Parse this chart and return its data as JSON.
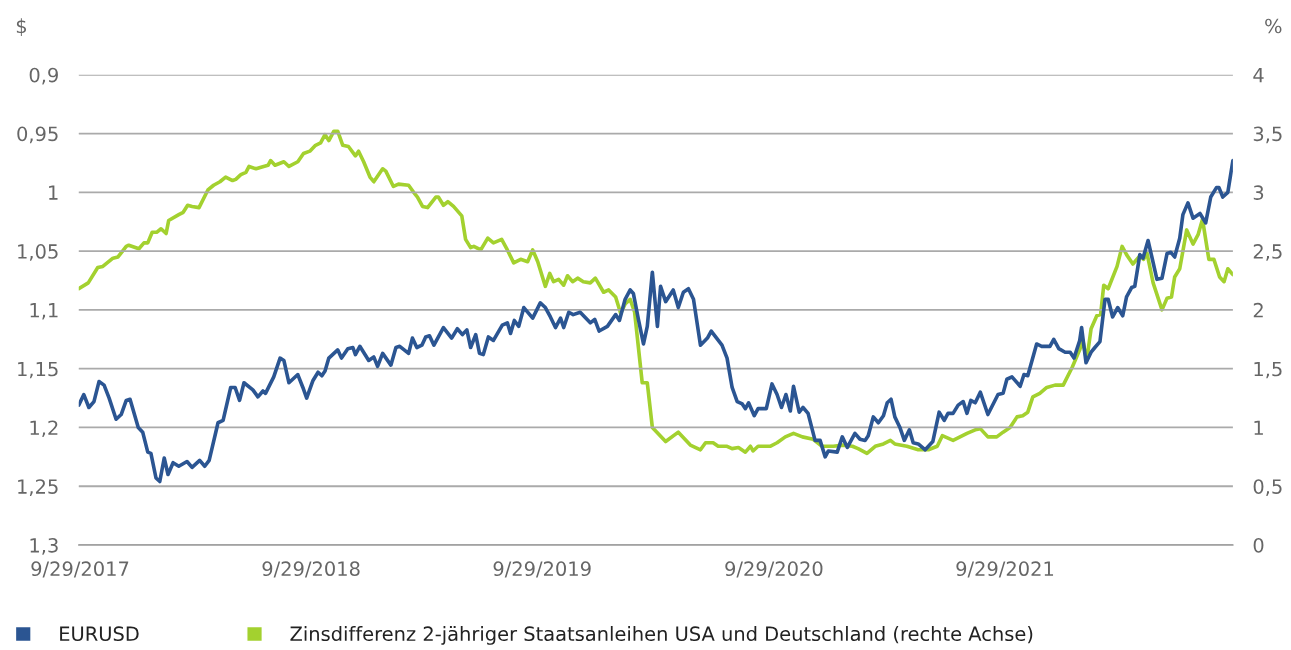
{
  "chart_data": {
    "type": "line",
    "ylabel": "$",
    "y2label": "%",
    "xlim": [
      "2017-09-27",
      "2022-09-24"
    ],
    "xticks": [
      {
        "value": "2017-09-29",
        "label": "9/29/2017"
      },
      {
        "value": "2018-09-29",
        "label": "9/29/2018"
      },
      {
        "value": "2019-09-29",
        "label": "9/29/2019"
      },
      {
        "value": "2020-09-29",
        "label": "9/29/2020"
      },
      {
        "value": "2021-09-29",
        "label": "9/29/2021"
      }
    ],
    "ylim": [
      1.3,
      0.9
    ],
    "yticks": [
      {
        "value": 0.9,
        "label": "0,9"
      },
      {
        "value": 0.95,
        "label": "0,95"
      },
      {
        "value": 1,
        "label": "1"
      },
      {
        "value": 1.05,
        "label": "1,05"
      },
      {
        "value": 1.1,
        "label": "1,1"
      },
      {
        "value": 1.15,
        "label": "1,15"
      },
      {
        "value": 1.2,
        "label": "1,2"
      },
      {
        "value": 1.25,
        "label": "1,25"
      },
      {
        "value": 1.3,
        "label": "1,3"
      }
    ],
    "y2lim": [
      0,
      4
    ],
    "y2ticks": [
      0,
      {
        "value": 0.5,
        "label": "0,5"
      },
      1,
      {
        "value": 1.5,
        "label": "1,5"
      },
      2,
      {
        "value": 2.5,
        "label": "2,5"
      },
      3,
      {
        "value": 3.5,
        "label": "3,5"
      },
      4
    ],
    "grid": "y",
    "legend": "bottom",
    "marker": "none",
    "line_style": "solid",
    "series": [
      {
        "name": "EURUSD",
        "color": "#2b5592",
        "x": [
          "2017-09-27",
          "2017-10-05",
          "2017-10-13",
          "2017-10-21",
          "2017-10-29",
          "2017-11-06",
          "2017-11-14",
          "2017-11-25",
          "2017-12-03",
          "2017-12-11",
          "2017-12-17",
          "2017-12-30",
          "2018-01-06",
          "2018-01-14",
          "2018-01-19",
          "2018-01-27",
          "2018-02-02",
          "2018-02-09",
          "2018-02-15",
          "2018-02-23",
          "2018-03-04",
          "2018-03-17",
          "2018-03-25",
          "2018-04-06",
          "2018-04-14",
          "2018-04-21",
          "2018-05-05",
          "2018-05-13",
          "2018-05-25",
          "2018-06-01",
          "2018-06-08",
          "2018-06-15",
          "2018-06-29",
          "2018-07-07",
          "2018-07-15",
          "2018-07-19",
          "2018-08-01",
          "2018-08-11",
          "2018-08-17",
          "2018-08-25",
          "2018-09-08",
          "2018-09-16",
          "2018-09-22",
          "2018-10-02",
          "2018-10-10",
          "2018-10-16",
          "2018-10-21",
          "2018-10-27",
          "2018-11-10",
          "2018-11-16",
          "2018-11-26",
          "2018-12-04",
          "2018-12-08",
          "2018-12-15",
          "2018-12-29",
          "2019-01-06",
          "2019-01-12",
          "2019-01-20",
          "2019-02-02",
          "2019-02-10",
          "2019-02-16",
          "2019-03-02",
          "2019-03-08",
          "2019-03-15",
          "2019-03-23",
          "2019-03-29",
          "2019-04-04",
          "2019-04-11",
          "2019-04-26",
          "2019-05-09",
          "2019-05-18",
          "2019-05-26",
          "2019-06-02",
          "2019-06-08",
          "2019-06-16",
          "2019-06-22",
          "2019-06-28",
          "2019-07-06",
          "2019-07-14",
          "2019-07-28",
          "2019-08-05",
          "2019-08-10",
          "2019-08-16",
          "2019-08-23",
          "2019-08-31",
          "2019-09-14",
          "2019-09-26",
          "2019-10-04",
          "2019-10-12",
          "2019-10-20",
          "2019-10-28",
          "2019-11-02",
          "2019-11-10",
          "2019-11-17",
          "2019-11-28",
          "2019-12-14",
          "2019-12-21",
          "2019-12-28",
          "2020-01-10",
          "2020-01-23",
          "2020-01-29",
          "2020-02-07",
          "2020-02-15",
          "2020-02-20",
          "2020-02-28",
          "2020-03-07",
          "2020-03-13",
          "2020-03-21",
          "2020-03-29",
          "2020-04-03",
          "2020-04-11",
          "2020-04-23",
          "2020-05-01",
          "2020-05-09",
          "2020-05-17",
          "2020-05-25",
          "2020-06-05",
          "2020-06-16",
          "2020-06-22",
          "2020-07-09",
          "2020-07-17",
          "2020-07-25",
          "2020-08-02",
          "2020-08-10",
          "2020-08-15",
          "2020-08-20",
          "2020-08-29",
          "2020-09-04",
          "2020-09-17",
          "2020-09-26",
          "2020-10-04",
          "2020-10-11",
          "2020-10-18",
          "2020-10-25",
          "2020-10-30",
          "2020-11-08",
          "2020-11-14",
          "2020-11-22",
          "2020-12-03",
          "2020-12-11",
          "2020-12-19",
          "2020-12-24",
          "2021-01-07",
          "2021-01-15",
          "2021-01-23",
          "2021-02-04",
          "2021-02-12",
          "2021-02-20",
          "2021-02-25",
          "2021-03-05",
          "2021-03-13",
          "2021-03-21",
          "2021-03-27",
          "2021-04-02",
          "2021-04-08",
          "2021-04-16",
          "2021-04-23",
          "2021-05-01",
          "2021-05-07",
          "2021-05-15",
          "2021-05-26",
          "2021-06-07",
          "2021-06-17",
          "2021-06-25",
          "2021-07-01",
          "2021-07-09",
          "2021-07-17",
          "2021-07-25",
          "2021-07-31",
          "2021-08-06",
          "2021-08-13",
          "2021-08-21",
          "2021-09-02",
          "2021-09-18",
          "2021-09-26",
          "2021-10-02",
          "2021-10-10",
          "2021-10-23",
          "2021-10-29",
          "2021-11-04",
          "2021-11-18",
          "2021-11-26",
          "2021-12-09",
          "2021-12-15",
          "2021-12-23",
          "2022-01-02",
          "2022-01-10",
          "2022-01-16",
          "2022-01-25",
          "2022-01-28",
          "2022-02-04",
          "2022-02-12",
          "2022-02-18",
          "2022-02-26",
          "2022-03-06",
          "2022-03-11",
          "2022-03-18",
          "2022-03-26",
          "2022-04-03",
          "2022-04-09",
          "2022-04-17",
          "2022-04-22",
          "2022-04-30",
          "2022-05-05",
          "2022-05-13",
          "2022-05-19",
          "2022-05-27",
          "2022-06-04",
          "2022-06-12",
          "2022-06-18",
          "2022-06-24",
          "2022-07-02",
          "2022-07-07",
          "2022-07-15",
          "2022-07-23",
          "2022-08-03",
          "2022-08-12",
          "2022-08-20",
          "2022-08-29",
          "2022-09-02",
          "2022-09-08",
          "2022-09-16",
          "2022-09-24"
        ],
        "values": [
          1.181,
          1.172,
          1.183,
          1.178,
          1.161,
          1.164,
          1.175,
          1.193,
          1.189,
          1.177,
          1.176,
          1.2,
          1.204,
          1.221,
          1.222,
          1.243,
          1.246,
          1.226,
          1.24,
          1.23,
          1.233,
          1.229,
          1.234,
          1.228,
          1.233,
          1.228,
          1.196,
          1.194,
          1.166,
          1.166,
          1.177,
          1.162,
          1.168,
          1.174,
          1.169,
          1.171,
          1.157,
          1.141,
          1.143,
          1.162,
          1.155,
          1.166,
          1.175,
          1.16,
          1.153,
          1.156,
          1.152,
          1.141,
          1.134,
          1.141,
          1.133,
          1.132,
          1.138,
          1.131,
          1.143,
          1.14,
          1.148,
          1.137,
          1.147,
          1.132,
          1.131,
          1.137,
          1.124,
          1.132,
          1.13,
          1.123,
          1.122,
          1.13,
          1.115,
          1.124,
          1.116,
          1.121,
          1.117,
          1.132,
          1.121,
          1.137,
          1.138,
          1.123,
          1.126,
          1.113,
          1.111,
          1.12,
          1.109,
          1.114,
          1.098,
          1.107,
          1.094,
          1.098,
          1.106,
          1.115,
          1.107,
          1.115,
          1.102,
          1.104,
          1.102,
          1.111,
          1.108,
          1.118,
          1.114,
          1.104,
          1.109,
          1.091,
          1.083,
          1.086,
          1.108,
          1.129,
          1.114,
          1.068,
          1.114,
          1.08,
          1.093,
          1.083,
          1.098,
          1.085,
          1.082,
          1.091,
          1.13,
          1.124,
          1.118,
          1.13,
          1.141,
          1.166,
          1.178,
          1.18,
          1.184,
          1.179,
          1.19,
          1.184,
          1.184,
          1.163,
          1.172,
          1.183,
          1.172,
          1.186,
          1.165,
          1.187,
          1.183,
          1.188,
          1.211,
          1.211,
          1.225,
          1.22,
          1.221,
          1.208,
          1.217,
          1.205,
          1.21,
          1.211,
          1.207,
          1.191,
          1.196,
          1.19,
          1.179,
          1.176,
          1.191,
          1.2,
          1.211,
          1.202,
          1.213,
          1.214,
          1.219,
          1.212,
          1.187,
          1.194,
          1.188,
          1.188,
          1.181,
          1.178,
          1.188,
          1.177,
          1.179,
          1.17,
          1.189,
          1.172,
          1.171,
          1.159,
          1.157,
          1.165,
          1.155,
          1.156,
          1.129,
          1.131,
          1.131,
          1.125,
          1.133,
          1.136,
          1.136,
          1.141,
          1.126,
          1.115,
          1.145,
          1.136,
          1.132,
          1.127,
          1.091,
          1.091,
          1.106,
          1.098,
          1.105,
          1.089,
          1.081,
          1.08,
          1.053,
          1.056,
          1.041,
          1.055,
          1.074,
          1.073,
          1.052,
          1.051,
          1.055,
          1.039,
          1.019,
          1.009,
          1.022,
          1.018,
          1.026,
          1.004,
          0.996,
          0.996,
          1.004,
          1.0,
          0.973
        ]
      },
      {
        "name": "Zinsdifferenz 2-jähriger Staatsanleihen USA und Deutschland (rechte Achse)",
        "color": "#a3d12f",
        "axis": "y2",
        "x": [
          "2017-09-27",
          "2017-10-12",
          "2017-10-27",
          "2017-11-04",
          "2017-11-20",
          "2017-11-28",
          "2017-12-11",
          "2017-12-15",
          "2017-12-31",
          "2018-01-08",
          "2018-01-14",
          "2018-01-21",
          "2018-01-28",
          "2018-02-04",
          "2018-02-12",
          "2018-02-16",
          "2018-03-04",
          "2018-03-11",
          "2018-03-18",
          "2018-03-25",
          "2018-04-05",
          "2018-04-19",
          "2018-04-28",
          "2018-05-08",
          "2018-05-17",
          "2018-05-28",
          "2018-06-02",
          "2018-06-10",
          "2018-06-18",
          "2018-06-23",
          "2018-07-04",
          "2018-07-16",
          "2018-07-23",
          "2018-07-27",
          "2018-08-03",
          "2018-08-17",
          "2018-08-25",
          "2018-09-08",
          "2018-09-17",
          "2018-09-27",
          "2018-10-06",
          "2018-10-14",
          "2018-10-21",
          "2018-10-27",
          "2018-11-04",
          "2018-11-10",
          "2018-11-18",
          "2018-11-27",
          "2018-12-08",
          "2018-12-13",
          "2018-12-21",
          "2018-12-31",
          "2019-01-06",
          "2019-01-20",
          "2019-01-25",
          "2019-02-06",
          "2019-02-14",
          "2019-03-02",
          "2019-03-10",
          "2019-03-16",
          "2019-03-24",
          "2019-04-01",
          "2019-04-14",
          "2019-04-18",
          "2019-04-26",
          "2019-05-03",
          "2019-05-12",
          "2019-05-25",
          "2019-05-31",
          "2019-06-08",
          "2019-06-13",
          "2019-06-24",
          "2019-07-05",
          "2019-07-14",
          "2019-07-27",
          "2019-08-05",
          "2019-08-15",
          "2019-08-26",
          "2019-09-06",
          "2019-09-14",
          "2019-09-22",
          "2019-10-04",
          "2019-10-11",
          "2019-10-17",
          "2019-10-25",
          "2019-11-02",
          "2019-11-08",
          "2019-11-16",
          "2019-11-24",
          "2019-12-03",
          "2019-12-14",
          "2019-12-22",
          "2020-01-04",
          "2020-01-12",
          "2020-01-23",
          "2020-01-31",
          "2020-02-07",
          "2020-02-15",
          "2020-02-22",
          "2020-03-05",
          "2020-03-13",
          "2020-03-21",
          "2020-04-11",
          "2020-05-01",
          "2020-05-20",
          "2020-06-05",
          "2020-06-13",
          "2020-06-25",
          "2020-07-03",
          "2020-07-17",
          "2020-07-25",
          "2020-08-04",
          "2020-08-15",
          "2020-08-23",
          "2020-08-27",
          "2020-09-04",
          "2020-09-23",
          "2020-10-04",
          "2020-10-17",
          "2020-10-30",
          "2020-11-13",
          "2020-11-30",
          "2020-12-14",
          "2021-01-01",
          "2021-01-16",
          "2021-01-31",
          "2021-02-09",
          "2021-02-23",
          "2021-03-08",
          "2021-03-21",
          "2021-04-01",
          "2021-04-08",
          "2021-04-27",
          "2021-05-15",
          "2021-05-31",
          "2021-06-14",
          "2021-06-22",
          "2021-07-09",
          "2021-07-31",
          "2021-08-13",
          "2021-08-21",
          "2021-09-02",
          "2021-09-16",
          "2021-09-26",
          "2021-10-07",
          "2021-10-18",
          "2021-10-27",
          "2021-11-04",
          "2021-11-12",
          "2021-11-23",
          "2021-12-04",
          "2021-12-17",
          "2021-12-30",
          "2022-01-13",
          "2022-01-25",
          "2022-01-30",
          "2022-02-05",
          "2022-02-12",
          "2022-02-21",
          "2022-02-27",
          "2022-03-04",
          "2022-03-11",
          "2022-03-25",
          "2022-04-02",
          "2022-04-09",
          "2022-04-19",
          "2022-04-30",
          "2022-05-06",
          "2022-05-11",
          "2022-05-21",
          "2022-06-04",
          "2022-06-12",
          "2022-06-19",
          "2022-06-24",
          "2022-07-02",
          "2022-07-13",
          "2022-07-23",
          "2022-07-31",
          "2022-08-07",
          "2022-08-17",
          "2022-08-25",
          "2022-09-03",
          "2022-09-10",
          "2022-09-16",
          "2022-09-24"
        ],
        "values": [
          2.18,
          2.23,
          2.36,
          2.37,
          2.44,
          2.45,
          2.54,
          2.55,
          2.52,
          2.57,
          2.57,
          2.66,
          2.66,
          2.69,
          2.65,
          2.76,
          2.81,
          2.83,
          2.89,
          2.88,
          2.87,
          3.02,
          3.06,
          3.09,
          3.13,
          3.1,
          3.11,
          3.15,
          3.17,
          3.22,
          3.2,
          3.22,
          3.23,
          3.27,
          3.23,
          3.26,
          3.22,
          3.26,
          3.33,
          3.35,
          3.4,
          3.42,
          3.49,
          3.44,
          3.52,
          3.52,
          3.4,
          3.39,
          3.31,
          3.35,
          3.26,
          3.13,
          3.09,
          3.2,
          3.18,
          3.05,
          3.07,
          3.06,
          3.0,
          2.96,
          2.88,
          2.87,
          2.96,
          2.96,
          2.89,
          2.92,
          2.88,
          2.8,
          2.6,
          2.53,
          2.54,
          2.51,
          2.61,
          2.57,
          2.6,
          2.51,
          2.4,
          2.43,
          2.41,
          2.51,
          2.41,
          2.2,
          2.31,
          2.24,
          2.26,
          2.21,
          2.29,
          2.24,
          2.27,
          2.24,
          2.23,
          2.27,
          2.15,
          2.17,
          2.11,
          1.97,
          2.05,
          2.09,
          1.98,
          1.38,
          1.38,
          1.0,
          0.88,
          0.96,
          0.85,
          0.81,
          0.87,
          0.87,
          0.84,
          0.84,
          0.82,
          0.83,
          0.79,
          0.84,
          0.8,
          0.84,
          0.84,
          0.87,
          0.92,
          0.95,
          0.92,
          0.9,
          0.84,
          0.84,
          0.85,
          0.84,
          0.82,
          0.78,
          0.84,
          0.86,
          0.89,
          0.86,
          0.84,
          0.81,
          0.81,
          0.84,
          0.93,
          0.89,
          0.95,
          0.98,
          0.99,
          0.92,
          0.92,
          0.96,
          1.0,
          1.09,
          1.1,
          1.13,
          1.26,
          1.29,
          1.34,
          1.36,
          1.36,
          1.51,
          1.66,
          1.74,
          1.57,
          1.84,
          1.95,
          1.96,
          2.21,
          2.18,
          2.37,
          2.54,
          2.47,
          2.39,
          2.46,
          2.43,
          2.49,
          2.23,
          2.0,
          2.1,
          2.11,
          2.28,
          2.35,
          2.68,
          2.56,
          2.64,
          2.77,
          2.43,
          2.43,
          2.28,
          2.24,
          2.35,
          2.3
        ]
      }
    ]
  }
}
